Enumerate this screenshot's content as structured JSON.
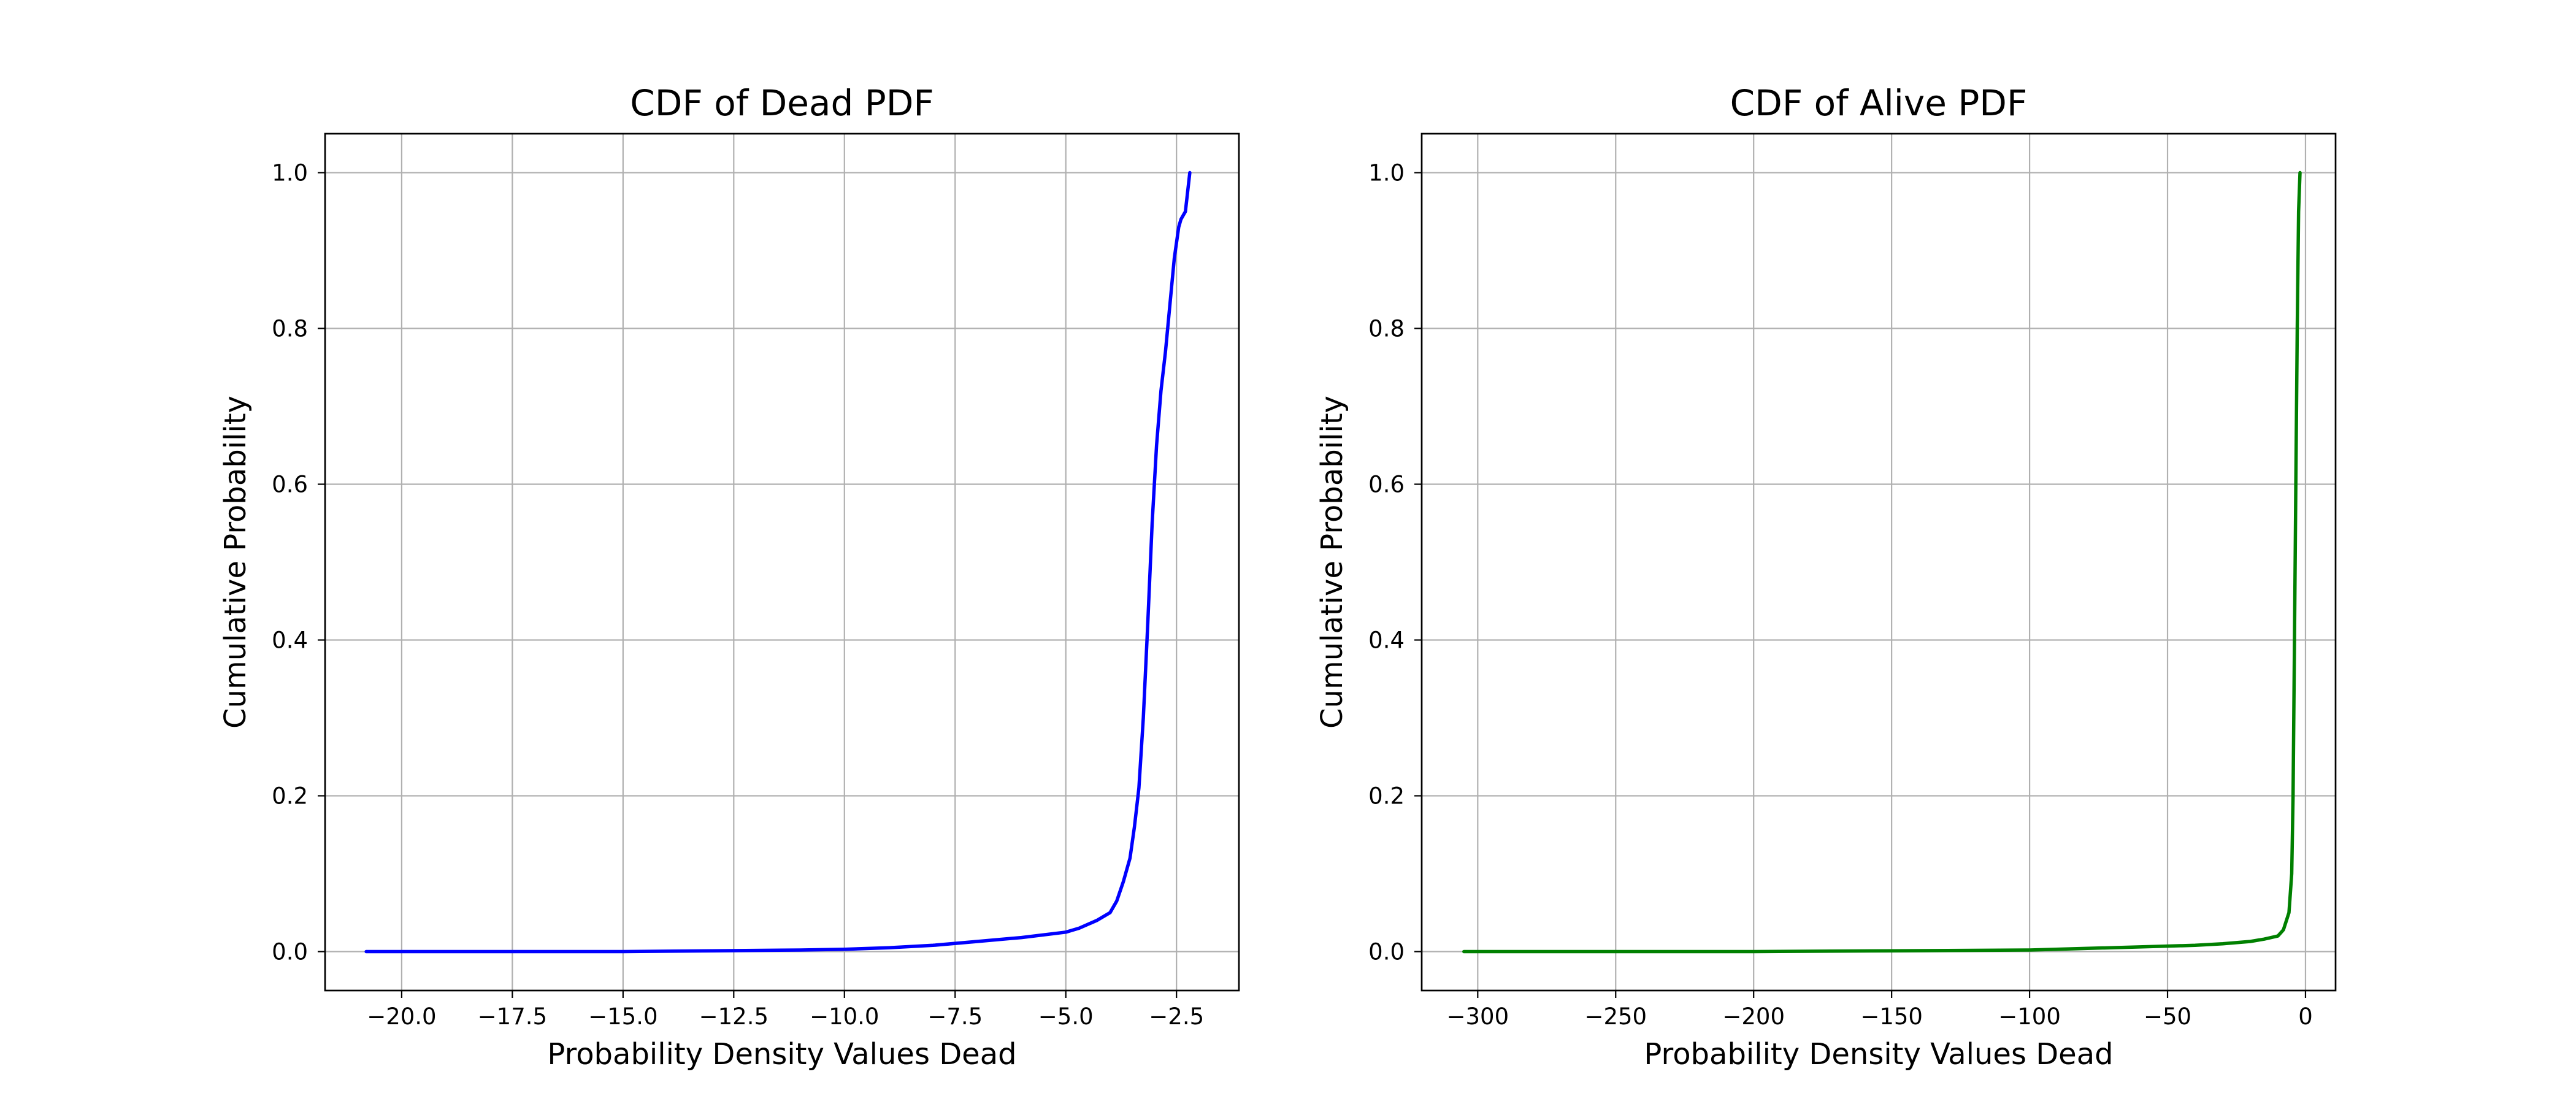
{
  "chart_data": [
    {
      "type": "line",
      "title": "CDF of Dead PDF",
      "xlabel": "Probability Density Values Dead",
      "ylabel": "Cumulative Probability",
      "xlim": [
        -21.73,
        -1.09
      ],
      "ylim": [
        -0.05,
        1.05
      ],
      "grid": true,
      "xticks": [
        -20.0,
        -17.5,
        -15.0,
        -12.5,
        -10.0,
        -7.5,
        -5.0,
        -2.5
      ],
      "xtick_labels": [
        "−20.0",
        "−17.5",
        "−15.0",
        "−12.5",
        "−10.0",
        "−7.5",
        "−5.0",
        "−2.5"
      ],
      "yticks": [
        0.0,
        0.2,
        0.4,
        0.6,
        0.8,
        1.0
      ],
      "ytick_labels": [
        "0.0",
        "0.2",
        "0.4",
        "0.6",
        "0.8",
        "1.0"
      ],
      "series": [
        {
          "color": "#0000ff",
          "x": [
            -20.8,
            -19.0,
            -17.0,
            -15.0,
            -13.0,
            -11.0,
            -10.0,
            -9.0,
            -8.0,
            -7.0,
            -6.0,
            -5.0,
            -4.7,
            -4.3,
            -4.0,
            -3.85,
            -3.7,
            -3.55,
            -3.45,
            -3.35,
            -3.25,
            -3.15,
            -3.05,
            -2.95,
            -2.85,
            -2.75,
            -2.65,
            -2.55,
            -2.45,
            -2.4,
            -2.35,
            -2.3,
            -2.25,
            -2.2
          ],
          "y": [
            0.0,
            0.0,
            0.0,
            0.0,
            0.001,
            0.002,
            0.003,
            0.005,
            0.008,
            0.013,
            0.018,
            0.025,
            0.03,
            0.04,
            0.05,
            0.065,
            0.09,
            0.12,
            0.16,
            0.21,
            0.3,
            0.42,
            0.55,
            0.65,
            0.72,
            0.77,
            0.83,
            0.89,
            0.93,
            0.94,
            0.945,
            0.95,
            0.975,
            1.0
          ]
        }
      ]
    },
    {
      "type": "line",
      "title": "CDF of Alive PDF",
      "xlabel": "Probability Density Values Dead",
      "ylabel": "Cumulative Probability",
      "xlim": [
        -320.3,
        10.9
      ],
      "ylim": [
        -0.05,
        1.05
      ],
      "grid": true,
      "xticks": [
        -300,
        -250,
        -200,
        -150,
        -100,
        -50,
        0
      ],
      "xtick_labels": [
        "−300",
        "−250",
        "−200",
        "−150",
        "−100",
        "−50",
        "0"
      ],
      "yticks": [
        0.0,
        0.2,
        0.4,
        0.6,
        0.8,
        1.0
      ],
      "ytick_labels": [
        "0.0",
        "0.2",
        "0.4",
        "0.6",
        "0.8",
        "1.0"
      ],
      "series": [
        {
          "color": "#008000",
          "x": [
            -305,
            -280,
            -250,
            -200,
            -150,
            -100,
            -80,
            -60,
            -40,
            -30,
            -20,
            -15,
            -10,
            -8,
            -6,
            -5,
            -4.5,
            -4,
            -3.5,
            -3,
            -2.5,
            -2
          ],
          "y": [
            0.0,
            0.0,
            0.0,
            0.0,
            0.001,
            0.002,
            0.004,
            0.006,
            0.008,
            0.01,
            0.013,
            0.016,
            0.02,
            0.028,
            0.05,
            0.1,
            0.2,
            0.4,
            0.6,
            0.8,
            0.95,
            1.0
          ]
        }
      ]
    }
  ]
}
